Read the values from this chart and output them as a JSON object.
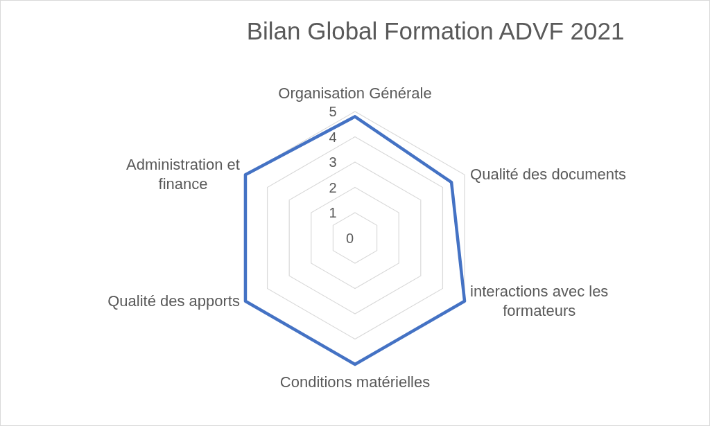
{
  "chart_data": {
    "type": "radar",
    "title": "Bilan Global Formation ADVF 2021",
    "categories": [
      "Organisation Générale",
      "Qualité des documents",
      "interactions avec les formateurs",
      "Conditions matérielles",
      "Qualité des apports",
      "Administration et finance"
    ],
    "series": [
      {
        "color": "#4472c4",
        "values": [
          4.8,
          4.4,
          5,
          5,
          5,
          5
        ]
      }
    ],
    "ylim": [
      0,
      5
    ],
    "yticks": [
      0,
      1,
      2,
      3,
      4,
      5
    ],
    "grid": true
  }
}
